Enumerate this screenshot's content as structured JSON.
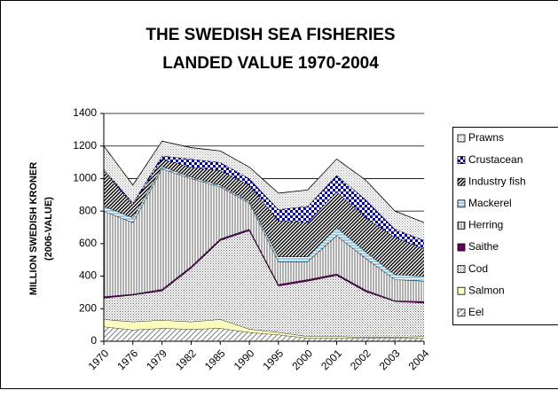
{
  "chart_data": {
    "type": "stacked_area",
    "title": [
      "THE SWEDISH SEA FISHERIES",
      "LANDED VALUE 1970-2004"
    ],
    "y_label": [
      "MILLION SWEDISH KRONER",
      "(2006-VALUE)"
    ],
    "categories": [
      "1970",
      "1976",
      "1979",
      "1982",
      "1985",
      "1990",
      "1995",
      "2000",
      "2001",
      "2002",
      "2003",
      "2004"
    ],
    "ylim": [
      0,
      1400
    ],
    "yticks": [
      0,
      200,
      400,
      600,
      800,
      1000,
      1200,
      1400
    ],
    "grid": true,
    "legend": "right",
    "series": [
      {
        "name": "Eel",
        "color": "#808080",
        "pattern": "diagonal",
        "values": [
          90,
          70,
          80,
          75,
          80,
          55,
          40,
          20,
          20,
          20,
          20,
          20
        ]
      },
      {
        "name": "Salmon",
        "color": "#ffffc0",
        "pattern": "solid",
        "values": [
          45,
          50,
          50,
          45,
          55,
          20,
          15,
          10,
          10,
          5,
          5,
          10
        ]
      },
      {
        "name": "Cod",
        "color": "#606060",
        "pattern": "dots",
        "values": [
          130,
          165,
          180,
          330,
          485,
          605,
          285,
          340,
          375,
          280,
          220,
          205
        ]
      },
      {
        "name": "Saithe",
        "color": "#660066",
        "pattern": "solid",
        "values": [
          10,
          5,
          10,
          10,
          10,
          10,
          10,
          10,
          10,
          10,
          5,
          10
        ]
      },
      {
        "name": "Herring",
        "color": "#606060",
        "pattern": "vertical",
        "values": [
          525,
          440,
          740,
          540,
          320,
          160,
          140,
          110,
          235,
          195,
          130,
          125
        ]
      },
      {
        "name": "Mackerel",
        "color": "#3399cc",
        "pattern": "horizontal",
        "values": [
          30,
          30,
          15,
          10,
          10,
          10,
          30,
          30,
          50,
          40,
          30,
          30
        ]
      },
      {
        "name": "Industry fish",
        "color": "#000000",
        "pattern": "dense-diagonal",
        "values": [
          220,
          80,
          45,
          60,
          90,
          100,
          220,
          210,
          220,
          210,
          230,
          170
        ]
      },
      {
        "name": "Crustacean",
        "color": "#000099",
        "pattern": "checks",
        "values": [
          10,
          10,
          20,
          50,
          50,
          40,
          70,
          100,
          100,
          110,
          50,
          50
        ]
      },
      {
        "name": "Prawns",
        "color": "#909090",
        "pattern": "dots",
        "values": [
          140,
          110,
          90,
          70,
          70,
          70,
          100,
          100,
          100,
          120,
          110,
          110
        ]
      }
    ]
  }
}
